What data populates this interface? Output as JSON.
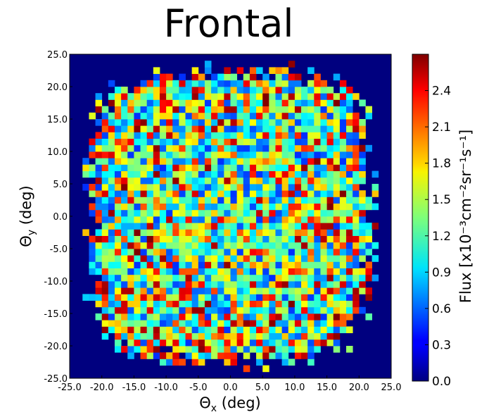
{
  "chart_data": {
    "type": "heatmap",
    "title": "Frontal",
    "xlabel": {
      "symbol": "Θ",
      "sub": "x",
      "unit": " (deg)"
    },
    "ylabel": {
      "symbol": "Θ",
      "sub": "y",
      "unit": " (deg)"
    },
    "xlim": [
      -25,
      25
    ],
    "ylim": [
      -25,
      25
    ],
    "x_ticks": [
      "-25.0",
      "-20.0",
      "-15.0",
      "-10.0",
      "-5.0",
      "0.0",
      "5.0",
      "10.0",
      "15.0",
      "20.0",
      "25.0"
    ],
    "y_ticks": [
      "-25.0",
      "-20.0",
      "-15.0",
      "-10.0",
      "-5.0",
      "0.0",
      "5.0",
      "10.0",
      "15.0",
      "20.0",
      "25.0"
    ],
    "colorbar": {
      "min": 0.0,
      "max": 2.7,
      "ticks": [
        "0.0",
        "0.3",
        "0.6",
        "0.9",
        "1.2",
        "1.5",
        "1.8",
        "2.1",
        "2.4"
      ],
      "label": "Flux [x10⁻³cm⁻²sr⁻¹s⁻¹]"
    },
    "grid": false,
    "colormap": "jet",
    "background_color": "#00007f",
    "bins_x": 50,
    "bins_y": 50,
    "bin_width_deg": 1.0,
    "data_region": "roughly square region with rounded corners, about -22 to 22 deg on each axis, outside is 0.0",
    "value_distribution": "noisy mostly 0.6-1.8 (cyan to yellow), with scattered red/dark-red bins concentrated near edges"
  }
}
